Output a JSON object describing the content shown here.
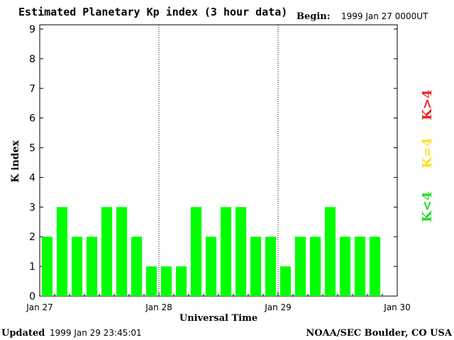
{
  "header": {
    "title": "Estimated Planetary Kp index (3 hour data)",
    "begin_label": "Begin:",
    "begin_value": "1999 Jan 27 0000UT"
  },
  "footer": {
    "updated_label": "Updated",
    "updated_value": "1999 Jan 29 23:45:01",
    "source": "NOAA/SEC Boulder, CO USA"
  },
  "legend": [
    {
      "text": "K<4",
      "color": "#22dd22"
    },
    {
      "text": "K=4",
      "color": "#ffdd22"
    },
    {
      "text": "K>4",
      "color": "#ee2222"
    }
  ],
  "chart_data": {
    "type": "bar",
    "xlabel": "Universal Time",
    "ylabel": "K index",
    "ylim": [
      0,
      9
    ],
    "yticks": [
      "0",
      "1",
      "2",
      "3",
      "4",
      "5",
      "6",
      "7",
      "8",
      "9"
    ],
    "x_ticks": [
      "Jan 27",
      "Jan 28",
      "Jan 29",
      "Jan 30"
    ],
    "day_separators": [
      "Jan 28",
      "Jan 29"
    ],
    "bar_color": "#00ff00",
    "bars": [
      {
        "day": "Jan 27",
        "slot": 1,
        "value": 2
      },
      {
        "day": "Jan 27",
        "slot": 2,
        "value": 3
      },
      {
        "day": "Jan 27",
        "slot": 3,
        "value": 2
      },
      {
        "day": "Jan 27",
        "slot": 4,
        "value": 2
      },
      {
        "day": "Jan 27",
        "slot": 5,
        "value": 3
      },
      {
        "day": "Jan 27",
        "slot": 6,
        "value": 3
      },
      {
        "day": "Jan 27",
        "slot": 7,
        "value": 2
      },
      {
        "day": "Jan 27",
        "slot": 8,
        "value": 1
      },
      {
        "day": "Jan 28",
        "slot": 1,
        "value": 1
      },
      {
        "day": "Jan 28",
        "slot": 2,
        "value": 1
      },
      {
        "day": "Jan 28",
        "slot": 3,
        "value": 3
      },
      {
        "day": "Jan 28",
        "slot": 4,
        "value": 2
      },
      {
        "day": "Jan 28",
        "slot": 5,
        "value": 3
      },
      {
        "day": "Jan 28",
        "slot": 6,
        "value": 3
      },
      {
        "day": "Jan 28",
        "slot": 7,
        "value": 2
      },
      {
        "day": "Jan 28",
        "slot": 8,
        "value": 2
      },
      {
        "day": "Jan 29",
        "slot": 1,
        "value": 1
      },
      {
        "day": "Jan 29",
        "slot": 2,
        "value": 2
      },
      {
        "day": "Jan 29",
        "slot": 3,
        "value": 2
      },
      {
        "day": "Jan 29",
        "slot": 4,
        "value": 3
      },
      {
        "day": "Jan 29",
        "slot": 5,
        "value": 2
      },
      {
        "day": "Jan 29",
        "slot": 6,
        "value": 2
      },
      {
        "day": "Jan 29",
        "slot": 7,
        "value": 2
      }
    ]
  }
}
